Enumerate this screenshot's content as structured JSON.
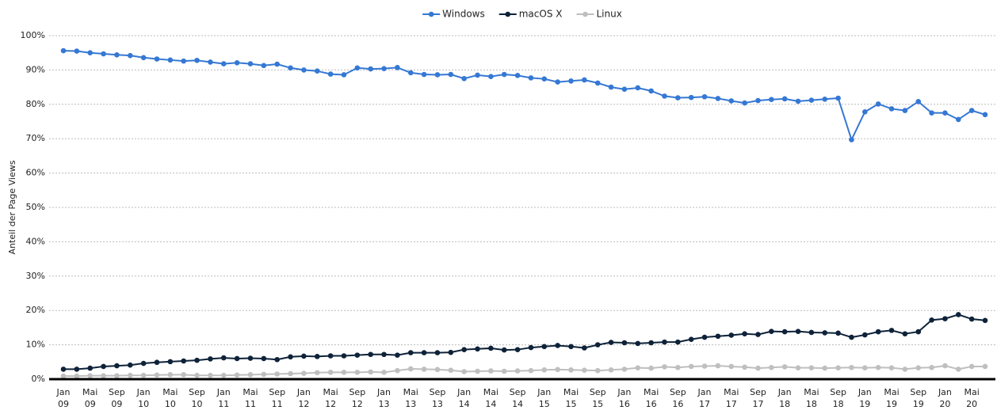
{
  "chart_data": {
    "type": "line",
    "y_label": "Anteil der Page Views",
    "categories": [
      "Jan 09",
      null,
      "Mai 09",
      null,
      "Sep 09",
      null,
      "Jan 10",
      null,
      "Mai 10",
      null,
      "Sep 10",
      null,
      "Jan 11",
      null,
      "Mai 11",
      null,
      "Sep 11",
      null,
      "Jan 12",
      null,
      "Mai 12",
      null,
      "Sep 12",
      null,
      "Jan 13",
      null,
      "Mai 13",
      null,
      "Sep 13",
      null,
      "Jan 14",
      null,
      "Mai 14",
      null,
      "Sep 14",
      null,
      "Jan 15",
      null,
      "Mai 15",
      null,
      "Sep 15",
      null,
      "Jan 16",
      null,
      "Mai 16",
      null,
      "Sep 16",
      null,
      "Jan 17",
      null,
      "Mai 17",
      null,
      "Sep 17",
      null,
      "Jan 18",
      null,
      "Mai 18",
      null,
      "Sep 18",
      null,
      "Jan 19",
      null,
      "Mai 19",
      null,
      "Sep 19",
      null,
      "Jan 20",
      null,
      "Mai 20",
      null
    ],
    "series": [
      {
        "name": "Windows",
        "color": "#3578d4",
        "values": [
          95.6,
          95.5,
          95.0,
          94.7,
          94.4,
          94.2,
          93.6,
          93.2,
          92.9,
          92.6,
          92.8,
          92.3,
          91.8,
          92.1,
          91.8,
          91.3,
          91.7,
          90.6,
          90.0,
          89.7,
          88.8,
          88.6,
          90.6,
          90.3,
          90.4,
          90.7,
          89.2,
          88.7,
          88.6,
          88.7,
          87.5,
          88.5,
          88.1,
          88.7,
          88.4,
          87.7,
          87.4,
          86.5,
          86.8,
          87.1,
          86.2,
          85.0,
          84.4,
          84.8,
          83.9,
          82.4,
          81.9,
          82.0,
          82.2,
          81.7,
          81.0,
          80.4,
          81.1,
          81.4,
          81.6,
          80.9,
          81.2,
          81.5,
          81.8,
          69.7,
          77.8,
          80.1,
          78.7,
          78.2,
          80.8,
          77.5,
          77.5,
          75.6,
          78.2,
          77.0
        ]
      },
      {
        "name": "macOS X",
        "color": "#0e2239",
        "values": [
          2.9,
          2.9,
          3.2,
          3.7,
          3.9,
          4.1,
          4.6,
          4.9,
          5.1,
          5.3,
          5.5,
          5.9,
          6.2,
          6.0,
          6.1,
          6.0,
          5.7,
          6.5,
          6.7,
          6.6,
          6.8,
          6.8,
          7.0,
          7.2,
          7.2,
          7.0,
          7.7,
          7.7,
          7.7,
          7.8,
          8.6,
          8.8,
          9.0,
          8.5,
          8.6,
          9.2,
          9.5,
          9.8,
          9.5,
          9.1,
          10.0,
          10.7,
          10.6,
          10.4,
          10.6,
          10.8,
          10.8,
          11.6,
          12.2,
          12.5,
          12.8,
          13.2,
          13.0,
          13.9,
          13.8,
          13.9,
          13.6,
          13.5,
          13.4,
          12.2,
          12.9,
          13.8,
          14.2,
          13.2,
          13.8,
          17.2,
          17.6,
          18.8,
          17.5,
          17.1
        ]
      },
      {
        "name": "Linux",
        "color": "#bfbfbf",
        "values": [
          0.9,
          0.9,
          1.0,
          1.0,
          1.0,
          1.1,
          1.1,
          1.2,
          1.3,
          1.3,
          1.1,
          1.1,
          1.1,
          1.2,
          1.3,
          1.4,
          1.5,
          1.6,
          1.7,
          1.9,
          2.0,
          2.0,
          2.0,
          2.1,
          2.0,
          2.5,
          3.0,
          2.9,
          2.8,
          2.6,
          2.2,
          2.3,
          2.4,
          2.3,
          2.4,
          2.5,
          2.7,
          2.8,
          2.7,
          2.6,
          2.5,
          2.7,
          2.9,
          3.3,
          3.2,
          3.6,
          3.4,
          3.7,
          3.8,
          3.9,
          3.7,
          3.5,
          3.2,
          3.4,
          3.6,
          3.3,
          3.3,
          3.2,
          3.3,
          3.4,
          3.3,
          3.4,
          3.3,
          2.9,
          3.3,
          3.4,
          3.9,
          2.9,
          3.7,
          3.7
        ]
      }
    ],
    "ylim": [
      0,
      100
    ],
    "yticks": [
      {
        "value": 0,
        "label": "0%"
      },
      {
        "value": 10,
        "label": "10%"
      },
      {
        "value": 20,
        "label": "20%"
      },
      {
        "value": 30,
        "label": "30%"
      },
      {
        "value": 40,
        "label": "40%"
      },
      {
        "value": 50,
        "label": "50%"
      },
      {
        "value": 60,
        "label": "60%"
      },
      {
        "value": 70,
        "label": "70%"
      },
      {
        "value": 80,
        "label": "80%"
      },
      {
        "value": 90,
        "label": "90%"
      },
      {
        "value": 100,
        "label": "100%"
      }
    ],
    "grid": true,
    "legend": "top"
  }
}
